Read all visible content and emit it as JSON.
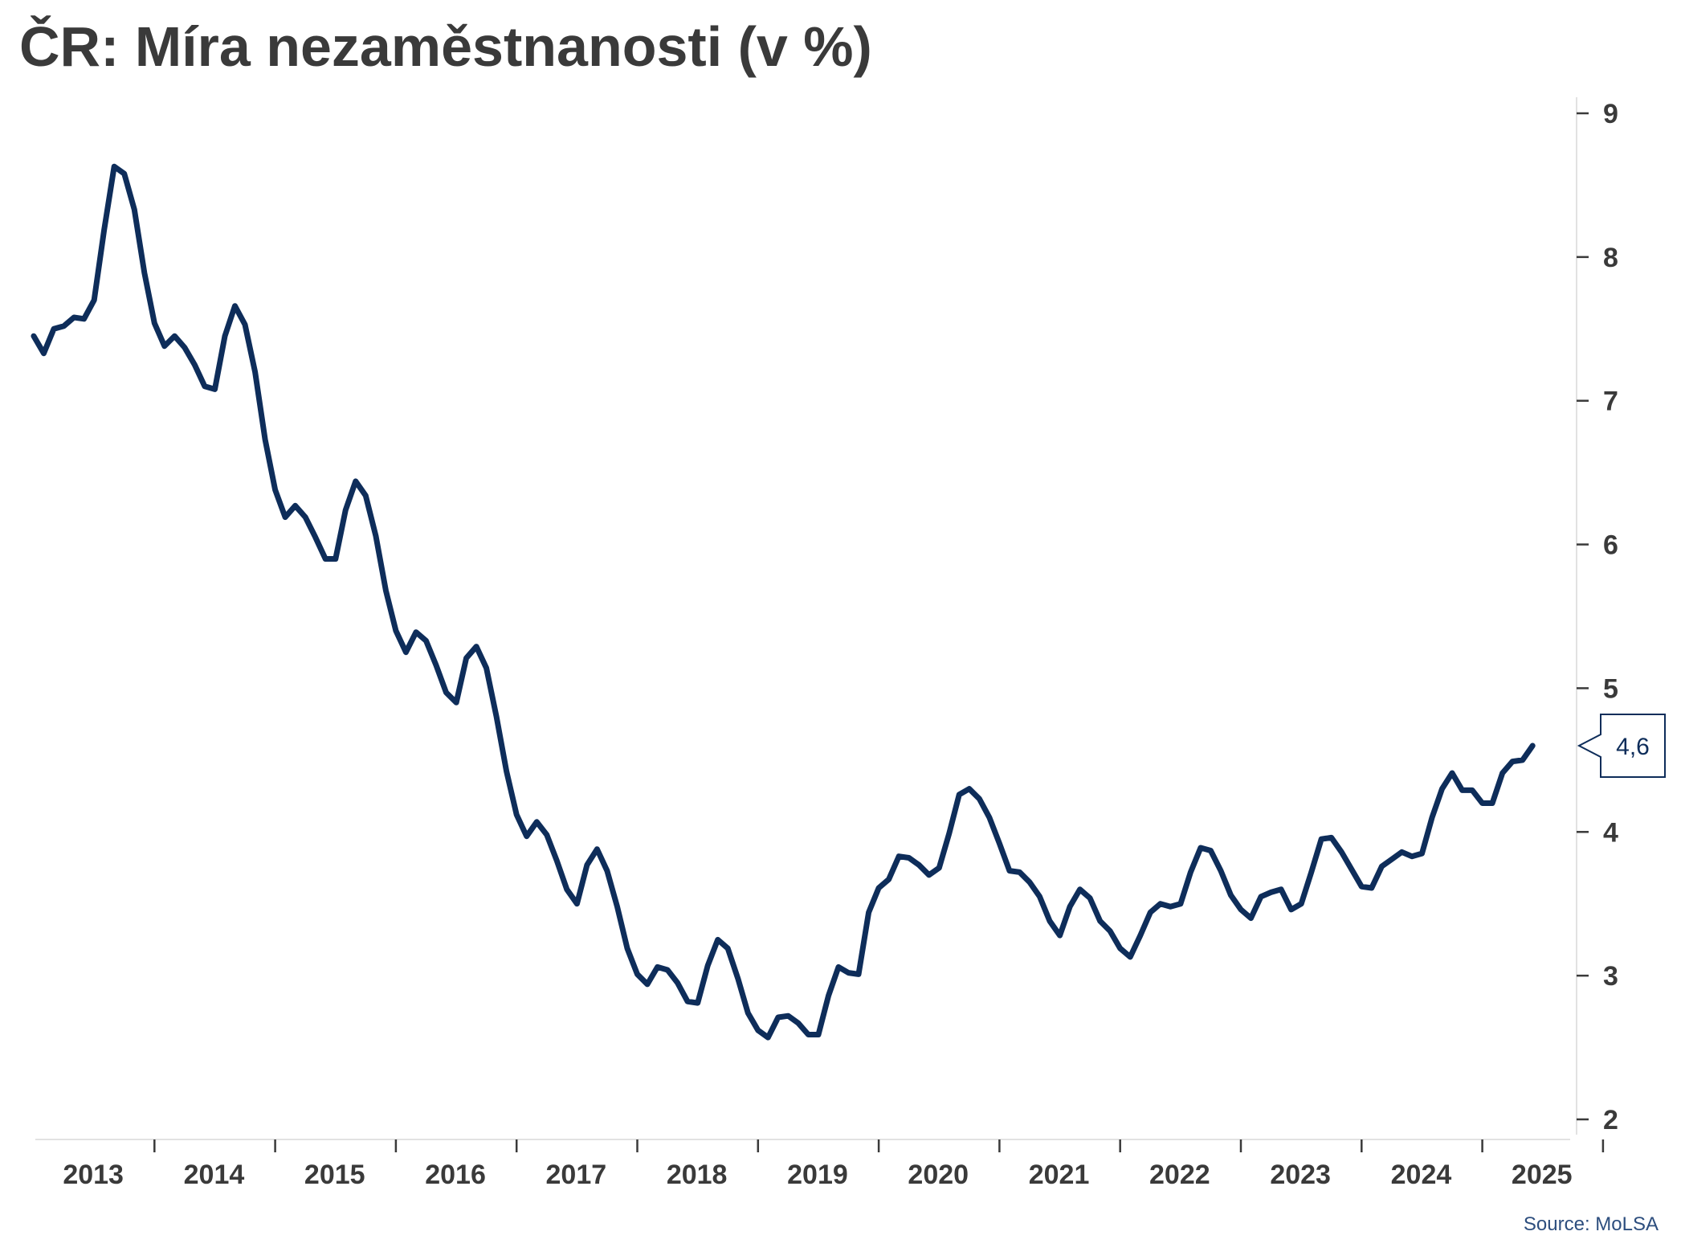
{
  "title": "ČR: Míra nezaměstnanosti (v %)",
  "source": "Source: MoLSA",
  "colors": {
    "line": "#0e2d5a",
    "axis": "#3a3a3a",
    "source": "#2d4e7e"
  },
  "chart_data": {
    "type": "line",
    "title": "ČR: Míra nezaměstnanosti (v %)",
    "xlabel": "",
    "ylabel": "",
    "ylim": [
      1.9,
      9.1
    ],
    "y_ticks": [
      "2",
      "3",
      "4",
      "5",
      "6",
      "7",
      "8",
      "9"
    ],
    "y_axis_position": "right",
    "grid": false,
    "x_ticks": [
      "2013",
      "2014",
      "2015",
      "2016",
      "2017",
      "2018",
      "2019",
      "2020",
      "2021",
      "2022",
      "2023",
      "2024",
      "2025"
    ],
    "last_value_label": "4,6",
    "series": [
      {
        "values": [
          7.45,
          7.33,
          7.5,
          7.52,
          7.58,
          7.57,
          7.7,
          8.19,
          8.63,
          8.58,
          8.33,
          7.89,
          7.54,
          7.38,
          7.45,
          7.37,
          7.25,
          7.1,
          7.08,
          7.45,
          7.66,
          7.53,
          7.2,
          6.73,
          6.38,
          6.19,
          6.27,
          6.19,
          6.05,
          5.9,
          5.9,
          6.24,
          6.44,
          6.34,
          6.06,
          5.68,
          5.4,
          5.25,
          5.39,
          5.33,
          5.16,
          4.97,
          4.9,
          5.21,
          5.29,
          5.14,
          4.8,
          4.42,
          4.12,
          3.97,
          4.07,
          3.98,
          3.8,
          3.6,
          3.5,
          3.77,
          3.88,
          3.73,
          3.48,
          3.19,
          3.01,
          2.94,
          3.06,
          3.04,
          2.95,
          2.82,
          2.81,
          3.07,
          3.25,
          3.19,
          2.98,
          2.74,
          2.62,
          2.57,
          2.71,
          2.72,
          2.67,
          2.59,
          2.59,
          2.86,
          3.06,
          3.02,
          3.01,
          3.44,
          3.61,
          3.67,
          3.83,
          3.82,
          3.77,
          3.7,
          3.75,
          3.99,
          4.26,
          4.3,
          4.23,
          4.1,
          3.92,
          3.73,
          3.72,
          3.65,
          3.55,
          3.38,
          3.28,
          3.48,
          3.6,
          3.54,
          3.38,
          3.31,
          3.19,
          3.13,
          3.28,
          3.44,
          3.5,
          3.48,
          3.5,
          3.72,
          3.89,
          3.87,
          3.73,
          3.56,
          3.46,
          3.4,
          3.55,
          3.58,
          3.6,
          3.46,
          3.5,
          3.72,
          3.95,
          3.96,
          3.86,
          3.74,
          3.62,
          3.61,
          3.76,
          3.81,
          3.86,
          3.83,
          3.85,
          4.1,
          4.3,
          4.41,
          4.29,
          4.29,
          4.2,
          4.2,
          4.41,
          4.49,
          4.5,
          4.6
        ]
      }
    ]
  }
}
